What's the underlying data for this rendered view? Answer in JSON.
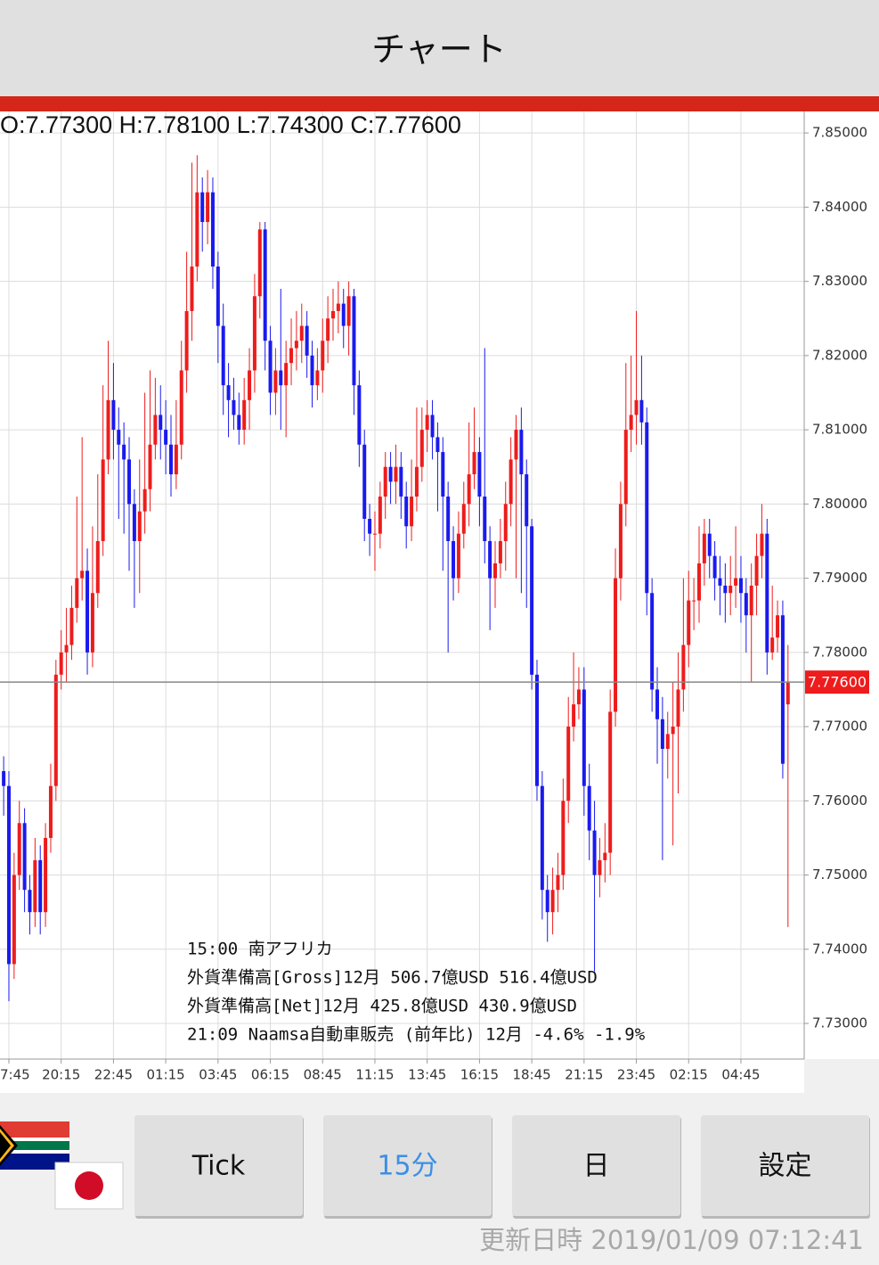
{
  "header": {
    "title": "チャート"
  },
  "chart_data": {
    "type": "candlestick",
    "ohlc_text": "O:7.77300 H:7.78100 L:7.74300 C:7.77600",
    "up_color": "#ee1c1c",
    "down_color": "#1a1aee",
    "ylim": [
      7.7252,
      7.8529
    ],
    "yticks": [
      {
        "value": 7.85,
        "label": "7.85000"
      },
      {
        "value": 7.84,
        "label": "7.84000"
      },
      {
        "value": 7.83,
        "label": "7.83000"
      },
      {
        "value": 7.82,
        "label": "7.82000"
      },
      {
        "value": 7.81,
        "label": "7.81000"
      },
      {
        "value": 7.8,
        "label": "7.80000"
      },
      {
        "value": 7.79,
        "label": "7.79000"
      },
      {
        "value": 7.78,
        "label": "7.78000"
      },
      {
        "value": 7.77,
        "label": "7.77000"
      },
      {
        "value": 7.76,
        "label": "7.76000"
      },
      {
        "value": 7.75,
        "label": "7.75000"
      },
      {
        "value": 7.74,
        "label": "7.74000"
      },
      {
        "value": 7.73,
        "label": "7.73000"
      }
    ],
    "grid": true,
    "xlim": [
      -0.7,
      153.1
    ],
    "xticks": [
      {
        "value": 1,
        "label": "7:45"
      },
      {
        "value": 11,
        "label": "20:15"
      },
      {
        "value": 21,
        "label": "22:45"
      },
      {
        "value": 31,
        "label": "01:15"
      },
      {
        "value": 41,
        "label": "03:45"
      },
      {
        "value": 51,
        "label": "06:15"
      },
      {
        "value": 61,
        "label": "08:45"
      },
      {
        "value": 71,
        "label": "11:15"
      },
      {
        "value": 81,
        "label": "13:45"
      },
      {
        "value": 91,
        "label": "16:15"
      },
      {
        "value": 101,
        "label": "18:45"
      },
      {
        "value": 111,
        "label": "21:15"
      },
      {
        "value": 121,
        "label": "23:45"
      },
      {
        "value": 131,
        "label": "02:15"
      },
      {
        "value": 141,
        "label": "04:45"
      }
    ],
    "last_price": {
      "value": 7.776,
      "label": "7.77600"
    },
    "open": [
      7.764,
      7.762,
      7.738,
      7.75,
      7.757,
      7.748,
      7.745,
      7.752,
      7.745,
      7.755,
      7.762,
      7.777,
      7.78,
      7.781,
      7.786,
      7.79,
      7.791,
      7.78,
      7.788,
      7.795,
      7.806,
      7.814,
      7.81,
      7.808,
      7.806,
      7.8,
      7.795,
      7.799,
      7.802,
      7.808,
      7.812,
      7.81,
      7.808,
      7.804,
      7.808,
      7.818,
      7.826,
      7.832,
      7.842,
      7.838,
      7.842,
      7.832,
      7.824,
      7.816,
      7.814,
      7.812,
      7.81,
      7.814,
      7.818,
      7.828,
      7.837,
      7.822,
      7.815,
      7.818,
      7.816,
      7.819,
      7.821,
      7.822,
      7.824,
      7.82,
      7.816,
      7.818,
      7.822,
      7.825,
      7.826,
      7.827,
      7.824,
      7.828,
      7.816,
      7.808,
      7.798,
      7.796,
      7.796,
      7.801,
      7.805,
      7.803,
      7.805,
      7.801,
      7.797,
      7.801,
      7.805,
      7.81,
      7.812,
      7.809,
      7.807,
      7.801,
      7.795,
      7.79,
      7.796,
      7.8,
      7.804,
      7.807,
      7.801,
      7.795,
      7.79,
      7.792,
      7.795,
      7.8,
      7.806,
      7.81,
      7.804,
      7.797,
      7.777,
      7.762,
      7.748,
      7.745,
      7.748,
      7.75,
      7.76,
      7.77,
      7.773,
      7.775,
      7.762,
      7.756,
      7.75,
      7.752,
      7.753,
      7.772,
      7.79,
      7.8,
      7.81,
      7.812,
      7.814,
      7.811,
      7.788,
      7.775,
      7.771,
      7.767,
      7.769,
      7.77,
      7.775,
      7.781,
      7.787,
      7.787,
      7.792,
      7.796,
      7.793,
      7.79,
      7.789,
      7.788,
      7.789,
      7.79,
      7.788,
      7.785,
      7.789,
      7.793,
      7.796,
      7.78,
      7.782,
      7.785,
      7.773
    ],
    "high": [
      7.766,
      7.764,
      7.753,
      7.76,
      7.759,
      7.75,
      7.755,
      7.754,
      7.757,
      7.765,
      7.779,
      7.783,
      7.786,
      7.789,
      7.801,
      7.809,
      7.794,
      7.797,
      7.804,
      7.816,
      7.822,
      7.819,
      7.813,
      7.811,
      7.809,
      7.802,
      7.806,
      7.815,
      7.818,
      7.817,
      7.816,
      7.814,
      7.812,
      7.814,
      7.822,
      7.834,
      7.846,
      7.847,
      7.844,
      7.845,
      7.844,
      7.834,
      7.827,
      7.819,
      7.817,
      7.815,
      7.817,
      7.821,
      7.831,
      7.838,
      7.838,
      7.824,
      7.821,
      7.829,
      7.822,
      7.825,
      7.826,
      7.827,
      7.826,
      7.822,
      7.821,
      7.825,
      7.828,
      7.829,
      7.83,
      7.829,
      7.83,
      7.829,
      7.818,
      7.81,
      7.8,
      7.799,
      7.803,
      7.807,
      7.807,
      7.808,
      7.807,
      7.803,
      7.806,
      7.813,
      7.813,
      7.814,
      7.814,
      7.811,
      7.809,
      7.803,
      7.797,
      7.799,
      7.803,
      7.811,
      7.813,
      7.809,
      7.821,
      7.797,
      7.795,
      7.798,
      7.803,
      7.809,
      7.812,
      7.813,
      7.806,
      7.798,
      7.779,
      7.764,
      7.75,
      7.751,
      7.753,
      7.763,
      7.774,
      7.78,
      7.778,
      7.778,
      7.765,
      7.76,
      7.755,
      7.757,
      7.775,
      7.794,
      7.803,
      7.819,
      7.82,
      7.826,
      7.82,
      7.813,
      7.79,
      7.778,
      7.774,
      7.772,
      7.776,
      7.78,
      7.79,
      7.791,
      7.79,
      7.797,
      7.798,
      7.798,
      7.795,
      7.793,
      7.792,
      7.793,
      7.797,
      7.793,
      7.79,
      7.792,
      7.796,
      7.8,
      7.798,
      7.789,
      7.787,
      7.787,
      7.781
    ],
    "low": [
      7.758,
      7.733,
      7.736,
      7.748,
      7.745,
      7.742,
      7.743,
      7.742,
      7.743,
      7.753,
      7.76,
      7.775,
      7.776,
      7.779,
      7.784,
      7.787,
      7.777,
      7.778,
      7.786,
      7.793,
      7.804,
      7.806,
      7.798,
      7.796,
      7.791,
      7.786,
      7.788,
      7.796,
      7.799,
      7.806,
      7.806,
      7.804,
      7.801,
      7.802,
      7.806,
      7.815,
      7.822,
      7.83,
      7.834,
      7.835,
      7.829,
      7.819,
      7.812,
      7.809,
      7.81,
      7.808,
      7.808,
      7.81,
      7.815,
      7.825,
      7.818,
      7.812,
      7.812,
      7.81,
      7.809,
      7.816,
      7.818,
      7.819,
      7.817,
      7.813,
      7.814,
      7.815,
      7.819,
      7.822,
      7.823,
      7.821,
      7.82,
      7.812,
      7.805,
      7.795,
      7.793,
      7.791,
      7.794,
      7.798,
      7.8,
      7.8,
      7.798,
      7.794,
      7.795,
      7.799,
      7.803,
      7.807,
      7.806,
      7.799,
      7.791,
      7.78,
      7.787,
      7.788,
      7.794,
      7.797,
      7.802,
      7.797,
      7.792,
      7.783,
      7.786,
      7.79,
      7.791,
      7.797,
      7.79,
      7.788,
      7.786,
      7.775,
      7.76,
      7.744,
      7.741,
      7.742,
      7.745,
      7.748,
      7.757,
      7.768,
      7.771,
      7.758,
      7.752,
      7.737,
      7.747,
      7.749,
      7.75,
      7.77,
      7.787,
      7.797,
      7.807,
      7.808,
      7.808,
      7.785,
      7.772,
      7.765,
      7.752,
      7.763,
      7.754,
      7.761,
      7.772,
      7.778,
      7.783,
      7.784,
      7.789,
      7.79,
      7.787,
      7.785,
      7.784,
      7.785,
      7.786,
      7.784,
      7.78,
      7.776,
      7.785,
      7.79,
      7.777,
      7.779,
      7.78,
      7.763,
      7.743
    ],
    "close": [
      7.762,
      7.738,
      7.75,
      7.757,
      7.748,
      7.745,
      7.752,
      7.745,
      7.755,
      7.762,
      7.777,
      7.78,
      7.781,
      7.786,
      7.79,
      7.791,
      7.78,
      7.788,
      7.795,
      7.806,
      7.814,
      7.81,
      7.808,
      7.806,
      7.8,
      7.795,
      7.799,
      7.802,
      7.808,
      7.812,
      7.81,
      7.808,
      7.804,
      7.808,
      7.818,
      7.826,
      7.832,
      7.842,
      7.838,
      7.842,
      7.832,
      7.824,
      7.816,
      7.814,
      7.812,
      7.81,
      7.814,
      7.818,
      7.828,
      7.837,
      7.822,
      7.815,
      7.818,
      7.816,
      7.819,
      7.821,
      7.822,
      7.824,
      7.82,
      7.816,
      7.818,
      7.822,
      7.825,
      7.826,
      7.827,
      7.824,
      7.828,
      7.816,
      7.808,
      7.798,
      7.796,
      7.796,
      7.801,
      7.805,
      7.803,
      7.805,
      7.801,
      7.797,
      7.801,
      7.805,
      7.81,
      7.812,
      7.809,
      7.807,
      7.801,
      7.795,
      7.79,
      7.796,
      7.8,
      7.804,
      7.807,
      7.801,
      7.795,
      7.79,
      7.792,
      7.795,
      7.8,
      7.806,
      7.81,
      7.804,
      7.797,
      7.777,
      7.762,
      7.748,
      7.745,
      7.748,
      7.75,
      7.76,
      7.77,
      7.773,
      7.775,
      7.762,
      7.756,
      7.75,
      7.752,
      7.753,
      7.772,
      7.79,
      7.8,
      7.81,
      7.812,
      7.814,
      7.811,
      7.788,
      7.775,
      7.771,
      7.767,
      7.769,
      7.77,
      7.775,
      7.781,
      7.787,
      7.787,
      7.792,
      7.796,
      7.793,
      7.79,
      7.789,
      7.788,
      7.789,
      7.79,
      7.788,
      7.785,
      7.789,
      7.793,
      7.796,
      7.78,
      7.782,
      7.785,
      7.765,
      7.776
    ],
    "events": [
      "15:00 南アフリカ",
      "外貨準備高[Gross]12月 506.7億USD 516.4億USD",
      "外貨準備高[Net]12月 425.8億USD 430.9億USD",
      "21:09 Naamsa自動車販売 (前年比) 12月 -4.6% -1.9%"
    ]
  },
  "buttons": [
    "Tick",
    "15分",
    "日",
    "設定"
  ],
  "selected_button": 1,
  "footer": "更新日時 2019/01/09 07:12:41"
}
